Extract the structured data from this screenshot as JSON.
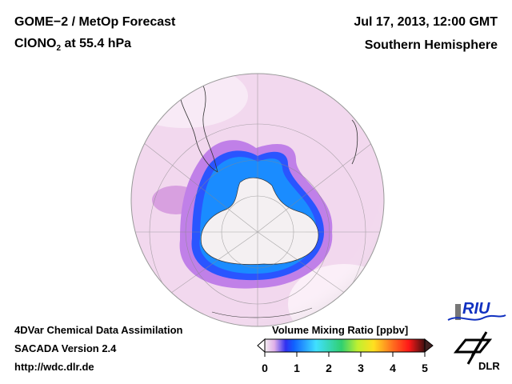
{
  "header": {
    "title_line1": "GOME−2 / MetOp Forecast",
    "title_line2_prefix": "ClONO",
    "title_line2_sub": "2",
    "title_line2_suffix": " at 55.4 hPa",
    "date": "Jul 17, 2013, 12:00 GMT",
    "region": "Southern Hemisphere"
  },
  "footer": {
    "line1": "4DVar Chemical Data Assimilation",
    "line2": "SACADA Version 2.4",
    "line3": "http://wdc.dlr.de"
  },
  "colorbar": {
    "title": "Volume Mixing Ratio [ppbv]",
    "ticks": [
      "0",
      "1",
      "2",
      "3",
      "4",
      "5"
    ],
    "range": [
      0,
      5
    ],
    "colors": [
      "#f4eef2",
      "#e0b0e8",
      "#3030f0",
      "#1060ff",
      "#40e0ff",
      "#30d070",
      "#c0f030",
      "#ffe020",
      "#ff8020",
      "#ff1818",
      "#a00010",
      "#401010"
    ]
  },
  "logos": {
    "riu": "RIU",
    "dlr": "DLR"
  }
}
